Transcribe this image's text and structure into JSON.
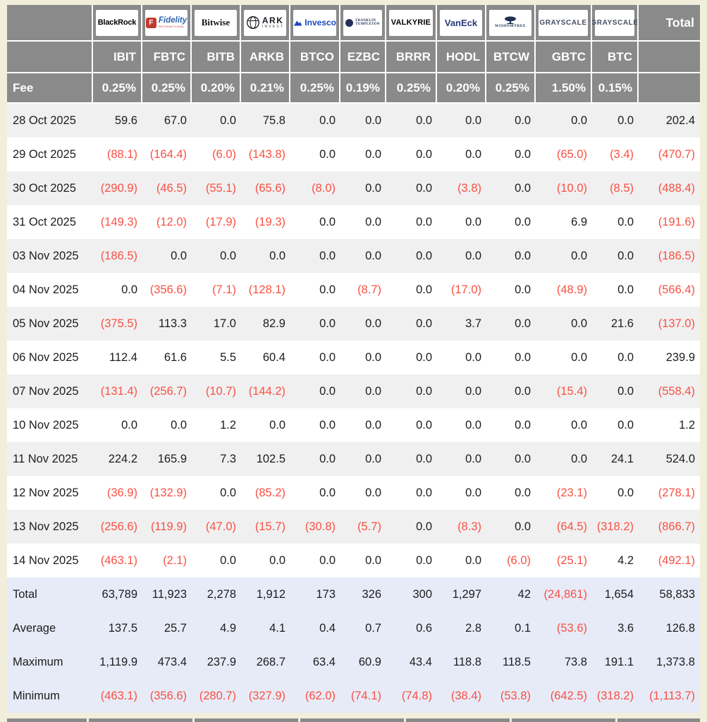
{
  "chart_data": {
    "type": "table",
    "corner": {
      "fee_label": "Fee",
      "total_label": "Total"
    },
    "providers": [
      {
        "name": "BlackRock",
        "ticker": "IBIT",
        "fee": "0.25%",
        "logo": {
          "style": "blackrock",
          "text": "BlackRock"
        }
      },
      {
        "name": "Fidelity International",
        "ticker": "FBTC",
        "fee": "0.25%",
        "logo": {
          "style": "fidelity",
          "icon_letter": "F",
          "text": "Fidelity",
          "subtext": "INTERNATIONAL"
        }
      },
      {
        "name": "Bitwise",
        "ticker": "BITB",
        "fee": "0.20%",
        "logo": {
          "style": "bitwise",
          "text": "Bitwise"
        }
      },
      {
        "name": "ARK Invest",
        "ticker": "ARKB",
        "fee": "0.21%",
        "logo": {
          "style": "ark",
          "text": "ARK",
          "subtext": "INVEST"
        }
      },
      {
        "name": "Invesco",
        "ticker": "BTCO",
        "fee": "0.25%",
        "logo": {
          "style": "invesco",
          "text": "Invesco"
        }
      },
      {
        "name": "Franklin Templeton",
        "ticker": "EZBC",
        "fee": "0.19%",
        "logo": {
          "style": "franklin",
          "text": "FRANKLIN",
          "subtext": "TEMPLETON"
        }
      },
      {
        "name": "Valkyrie",
        "ticker": "BRRR",
        "fee": "0.25%",
        "logo": {
          "style": "valkyrie",
          "text": "VALKYRIE"
        }
      },
      {
        "name": "VanEck",
        "ticker": "HODL",
        "fee": "0.20%",
        "logo": {
          "style": "vaneck",
          "text": "VanEck"
        }
      },
      {
        "name": "WisdomTree",
        "ticker": "BTCW",
        "fee": "0.25%",
        "logo": {
          "style": "wisdomtree",
          "text": "WISDOMTREE"
        }
      },
      {
        "name": "Grayscale",
        "ticker": "GBTC",
        "fee": "1.50%",
        "logo": {
          "style": "grayscale",
          "text": "GRAYSCALE"
        }
      },
      {
        "name": "Grayscale",
        "ticker": "BTC",
        "fee": "0.15%",
        "logo": {
          "style": "grayscale",
          "text": "GRAYSCALE"
        }
      }
    ],
    "rows": [
      {
        "date": "28 Oct 2025",
        "values": [
          "59.6",
          "67.0",
          "0.0",
          "75.8",
          "0.0",
          "0.0",
          "0.0",
          "0.0",
          "0.0",
          "0.0",
          "0.0",
          "202.4"
        ]
      },
      {
        "date": "29 Oct 2025",
        "values": [
          "(88.1)",
          "(164.4)",
          "(6.0)",
          "(143.8)",
          "0.0",
          "0.0",
          "0.0",
          "0.0",
          "0.0",
          "(65.0)",
          "(3.4)",
          "(470.7)"
        ]
      },
      {
        "date": "30 Oct 2025",
        "values": [
          "(290.9)",
          "(46.5)",
          "(55.1)",
          "(65.6)",
          "(8.0)",
          "0.0",
          "0.0",
          "(3.8)",
          "0.0",
          "(10.0)",
          "(8.5)",
          "(488.4)"
        ]
      },
      {
        "date": "31 Oct 2025",
        "values": [
          "(149.3)",
          "(12.0)",
          "(17.9)",
          "(19.3)",
          "0.0",
          "0.0",
          "0.0",
          "0.0",
          "0.0",
          "6.9",
          "0.0",
          "(191.6)"
        ]
      },
      {
        "date": "03 Nov 2025",
        "values": [
          "(186.5)",
          "0.0",
          "0.0",
          "0.0",
          "0.0",
          "0.0",
          "0.0",
          "0.0",
          "0.0",
          "0.0",
          "0.0",
          "(186.5)"
        ]
      },
      {
        "date": "04 Nov 2025",
        "values": [
          "0.0",
          "(356.6)",
          "(7.1)",
          "(128.1)",
          "0.0",
          "(8.7)",
          "0.0",
          "(17.0)",
          "0.0",
          "(48.9)",
          "0.0",
          "(566.4)"
        ]
      },
      {
        "date": "05 Nov 2025",
        "values": [
          "(375.5)",
          "113.3",
          "17.0",
          "82.9",
          "0.0",
          "0.0",
          "0.0",
          "3.7",
          "0.0",
          "0.0",
          "21.6",
          "(137.0)"
        ]
      },
      {
        "date": "06 Nov 2025",
        "values": [
          "112.4",
          "61.6",
          "5.5",
          "60.4",
          "0.0",
          "0.0",
          "0.0",
          "0.0",
          "0.0",
          "0.0",
          "0.0",
          "239.9"
        ]
      },
      {
        "date": "07 Nov 2025",
        "values": [
          "(131.4)",
          "(256.7)",
          "(10.7)",
          "(144.2)",
          "0.0",
          "0.0",
          "0.0",
          "0.0",
          "0.0",
          "(15.4)",
          "0.0",
          "(558.4)"
        ]
      },
      {
        "date": "10 Nov 2025",
        "values": [
          "0.0",
          "0.0",
          "1.2",
          "0.0",
          "0.0",
          "0.0",
          "0.0",
          "0.0",
          "0.0",
          "0.0",
          "0.0",
          "1.2"
        ]
      },
      {
        "date": "11 Nov 2025",
        "values": [
          "224.2",
          "165.9",
          "7.3",
          "102.5",
          "0.0",
          "0.0",
          "0.0",
          "0.0",
          "0.0",
          "0.0",
          "24.1",
          "524.0"
        ]
      },
      {
        "date": "12 Nov 2025",
        "values": [
          "(36.9)",
          "(132.9)",
          "0.0",
          "(85.2)",
          "0.0",
          "0.0",
          "0.0",
          "0.0",
          "0.0",
          "(23.1)",
          "0.0",
          "(278.1)"
        ]
      },
      {
        "date": "13 Nov 2025",
        "values": [
          "(256.6)",
          "(119.9)",
          "(47.0)",
          "(15.7)",
          "(30.8)",
          "(5.7)",
          "0.0",
          "(8.3)",
          "0.0",
          "(64.5)",
          "(318.2)",
          "(866.7)"
        ]
      },
      {
        "date": "14 Nov 2025",
        "values": [
          "(463.1)",
          "(2.1)",
          "0.0",
          "0.0",
          "0.0",
          "0.0",
          "0.0",
          "0.0",
          "(6.0)",
          "(25.1)",
          "4.2",
          "(492.1)"
        ]
      }
    ],
    "summary_rows": [
      {
        "label": "Total",
        "values": [
          "63,789",
          "11,923",
          "2,278",
          "1,912",
          "173",
          "326",
          "300",
          "1,297",
          "42",
          "(24,861)",
          "1,654",
          "58,833"
        ]
      },
      {
        "label": "Average",
        "values": [
          "137.5",
          "25.7",
          "4.9",
          "4.1",
          "0.4",
          "0.7",
          "0.6",
          "2.8",
          "0.1",
          "(53.6)",
          "3.6",
          "126.8"
        ]
      },
      {
        "label": "Maximum",
        "values": [
          "1,119.9",
          "473.4",
          "237.9",
          "268.7",
          "63.4",
          "60.9",
          "43.4",
          "118.8",
          "118.5",
          "73.8",
          "191.1",
          "1,373.8"
        ]
      },
      {
        "label": "Minimum",
        "values": [
          "(463.1)",
          "(356.6)",
          "(280.7)",
          "(327.9)",
          "(62.0)",
          "(74.1)",
          "(74.8)",
          "(38.4)",
          "(53.8)",
          "(642.5)",
          "(318.2)",
          "(1,113.7)"
        ]
      }
    ],
    "layout": {
      "negative_format": "parentheses",
      "grid": "header-only",
      "legend_position": "none"
    },
    "colors": {
      "negative_red": "#f95043",
      "header_gray": "#8a8a8a",
      "alt_row_gray": "#f0f0f0",
      "summary_blue": "#e7ebf7",
      "page_cream": "#f2eedc",
      "invesco_blue": "#1b46c2",
      "fidelity_red": "#c13a30",
      "fidelity_blue": "#2d64ad",
      "navy_logos": "#223055"
    }
  }
}
